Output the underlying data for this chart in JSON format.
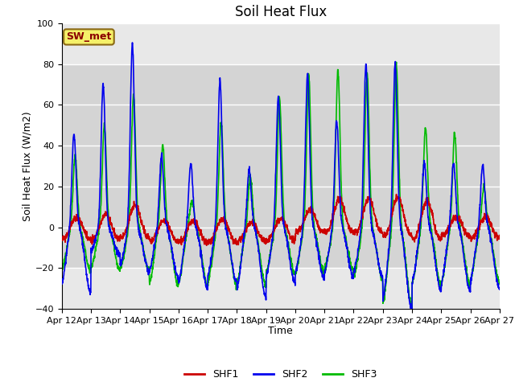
{
  "title": "Soil Heat Flux",
  "xlabel": "Time",
  "ylabel": "Soil Heat Flux (W/m2)",
  "ylim": [
    -40,
    100
  ],
  "yticks": [
    -40,
    -20,
    0,
    20,
    40,
    60,
    80,
    100
  ],
  "xtick_labels": [
    "Apr 12",
    "Apr 13",
    "Apr 14",
    "Apr 15",
    "Apr 16",
    "Apr 17",
    "Apr 18",
    "Apr 19",
    "Apr 20",
    "Apr 21",
    "Apr 22",
    "Apr 23",
    "Apr 24",
    "Apr 25",
    "Apr 26",
    "Apr 27"
  ],
  "shaded_band": [
    -20,
    80
  ],
  "legend_label": "SW_met",
  "line_colors": {
    "SHF1": "#cc0000",
    "SHF2": "#0000ee",
    "SHF3": "#00bb00"
  },
  "line_widths": {
    "SHF1": 1.2,
    "SHF2": 1.2,
    "SHF3": 1.2
  },
  "bg_color": "#e8e8e8",
  "shaded_color": "#d4d4d4",
  "grid_color": "white",
  "n_days": 15,
  "pts_per_day": 144,
  "shf2_peaks": [
    46,
    70,
    90,
    35,
    31,
    72,
    28,
    64,
    75,
    52,
    80,
    80,
    32,
    31,
    30
  ],
  "shf2_troughs": [
    -33,
    -14,
    -22,
    -25,
    -31,
    -27,
    -35,
    -28,
    -26,
    -25,
    -25,
    -41,
    -32,
    -32,
    -30
  ],
  "shf3_peaks": [
    35,
    50,
    65,
    40,
    13,
    52,
    25,
    63,
    74,
    77,
    76,
    80,
    49,
    46,
    20
  ],
  "shf3_troughs": [
    -23,
    -22,
    -22,
    -30,
    -30,
    -30,
    -30,
    -24,
    -24,
    -22,
    -27,
    -40,
    -30,
    -30,
    -28
  ],
  "shf1_peaks": [
    5,
    6,
    11,
    3,
    3,
    4,
    2,
    4,
    9,
    14,
    14,
    15,
    13,
    5,
    5
  ],
  "shf1_troughs": [
    -12,
    -12,
    -10,
    -14,
    -15,
    -15,
    -14,
    -13,
    -5,
    -5,
    -5,
    -8,
    -12,
    -8,
    -10
  ]
}
